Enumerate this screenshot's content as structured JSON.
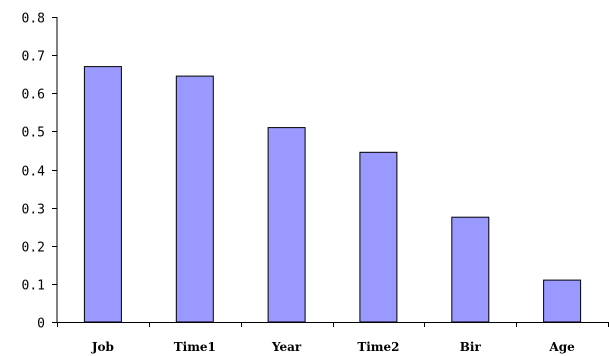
{
  "chart_data": {
    "type": "bar",
    "title": "",
    "xlabel": "",
    "ylabel": "",
    "categories": [
      "Job",
      "Time1",
      "Year",
      "Time2",
      "Bir",
      "Age"
    ],
    "values": [
      0.67,
      0.645,
      0.51,
      0.445,
      0.275,
      0.11
    ],
    "ylim": [
      0,
      0.8
    ],
    "yticks": [
      0,
      0.1,
      0.2,
      0.3,
      0.4,
      0.5,
      0.6,
      0.7,
      0.8
    ],
    "ytick_labels": [
      "0",
      "0.1",
      "0.2",
      "0.3",
      "0.4",
      "0.5",
      "0.6",
      "0.7",
      "0.8"
    ],
    "grid": false,
    "legend": "none",
    "colors": {
      "bar_fill": "#9999ff",
      "bar_stroke": "#000000",
      "axis": "#000000",
      "background": "#ffffff"
    }
  }
}
